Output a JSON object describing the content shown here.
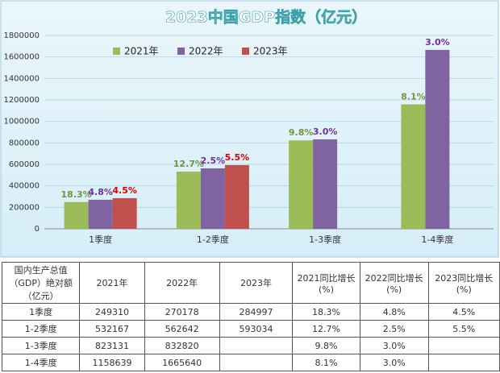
{
  "chart_data": {
    "type": "bar",
    "title": "2023中国GDP指数（亿元）",
    "categories": [
      "1季度",
      "1-2季度",
      "1-3季度",
      "1-4季度"
    ],
    "series": [
      {
        "name": "2021年",
        "color": "#9bbb59",
        "values": [
          249310,
          532167,
          823131,
          1158639
        ],
        "labels": [
          "18.3%",
          "12.7%",
          "9.8%",
          "8.1%"
        ],
        "label_color": "#77933c"
      },
      {
        "name": "2022年",
        "color": "#8064a2",
        "values": [
          270178,
          562642,
          832820,
          1665640
        ],
        "labels": [
          "4.8%",
          "2.5%",
          "3.0%",
          "3.0%"
        ],
        "label_color": "#7030a0"
      },
      {
        "name": "2023年",
        "color": "#c0504d",
        "values": [
          284997,
          593034,
          null,
          null
        ],
        "labels": [
          "4.5%",
          "5.5%",
          null,
          null
        ],
        "label_color": "#e00000"
      }
    ],
    "ylim": [
      0,
      1800000
    ],
    "yticks": [
      0,
      200000,
      400000,
      600000,
      800000,
      1000000,
      1200000,
      1400000,
      1600000,
      1800000
    ],
    "grid": true,
    "legend": "top-left"
  },
  "table": {
    "header": [
      "国内生产总值（GDP）绝对额（亿元）",
      "2021年",
      "2022年",
      "2023年",
      "2021同比增长(%)",
      "2022同比增长(%)",
      "2023同比增长(%)"
    ],
    "rows": [
      [
        "1季度",
        "249310",
        "270178",
        "284997",
        "18.3%",
        "4.8%",
        "4.5%"
      ],
      [
        "1-2季度",
        "532167",
        "562642",
        "593034",
        "12.7%",
        "2.5%",
        "5.5%"
      ],
      [
        "1-3季度",
        "823131",
        "832820",
        null,
        "9.8%",
        "3.0%",
        null
      ],
      [
        "1-4季度",
        "1158639",
        "1665640",
        null,
        "8.1%",
        "3.0%",
        null
      ]
    ]
  }
}
